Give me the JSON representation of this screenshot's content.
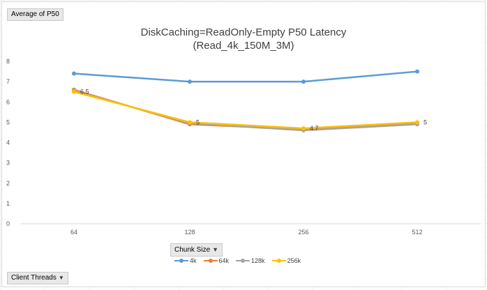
{
  "pivot": {
    "values_field": "Average of P50",
    "axis_field": "Chunk Size",
    "legend_field": "Client Threads"
  },
  "chart_data": {
    "type": "line",
    "title": "DiskCaching=ReadOnly-Empty P50 Latency",
    "subtitle": "(Read_4k_150M_3M)",
    "xlabel": "",
    "ylabel": "",
    "categories": [
      "64",
      "128",
      "256",
      "512"
    ],
    "ylim": [
      0,
      8
    ],
    "yticks": [
      "0",
      "1",
      "2",
      "3",
      "4",
      "5",
      "6",
      "7",
      "8"
    ],
    "grid": false,
    "legend_position": "bottom",
    "series": [
      {
        "name": "4k",
        "color": "#5b9bd5",
        "values": [
          7.4,
          7.0,
          7.0,
          7.5
        ]
      },
      {
        "name": "64k",
        "color": "#ed7d31",
        "values": [
          6.6,
          4.9,
          4.65,
          4.95
        ]
      },
      {
        "name": "128k",
        "color": "#a5a5a5",
        "values": [
          6.55,
          4.95,
          4.6,
          4.9
        ]
      },
      {
        "name": "256k",
        "color": "#ffc000",
        "values": [
          6.5,
          5.0,
          4.7,
          5.0
        ]
      }
    ],
    "data_labels": [
      {
        "series": "256k",
        "index": 0,
        "text": "6.5"
      },
      {
        "series": "256k",
        "index": 1,
        "text": "5"
      },
      {
        "series": "256k",
        "index": 2,
        "text": "4.7"
      },
      {
        "series": "256k",
        "index": 3,
        "text": "5"
      }
    ]
  }
}
